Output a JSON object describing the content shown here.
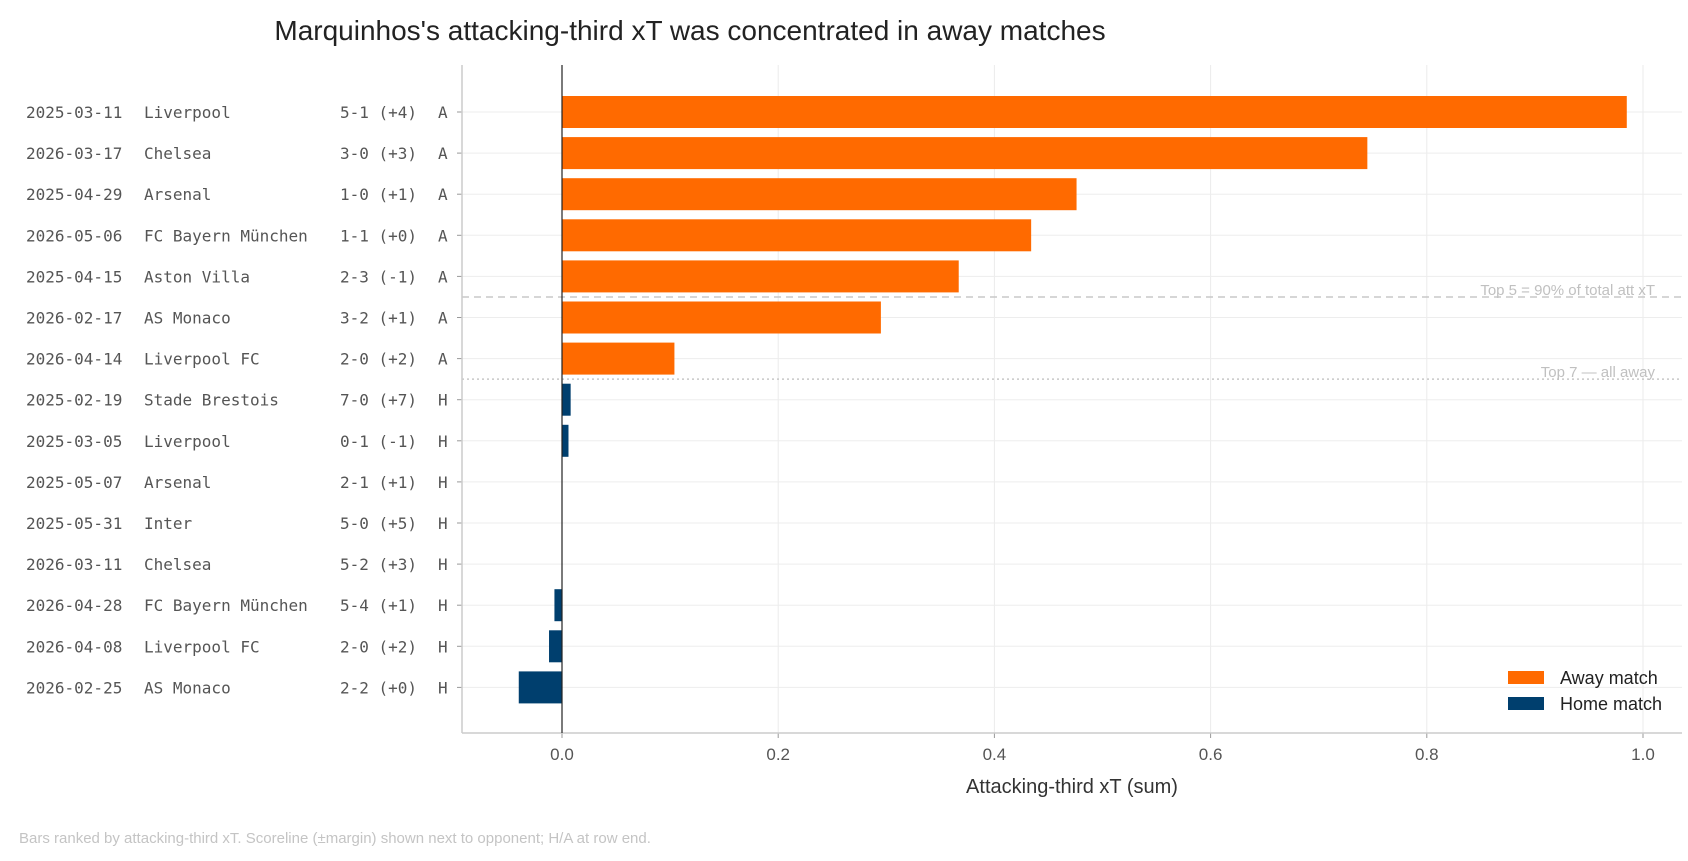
{
  "chart_data": {
    "type": "bar",
    "orientation": "horizontal",
    "title": "Marquinhos's attacking-third xT was concentrated in away matches",
    "xlabel": "Attacking-third xT (sum)",
    "ylabel": "",
    "xlim": [
      -0.09,
      1.035
    ],
    "xticks": [
      0.0,
      0.2,
      0.4,
      0.6,
      0.8,
      1.0
    ],
    "xtick_labels": [
      "0.0",
      "0.2",
      "0.4",
      "0.6",
      "0.8",
      "1.0"
    ],
    "grid": true,
    "legend_position": "bottom-right",
    "rows": [
      {
        "date": "2025-03-11",
        "opponent": "Liverpool",
        "score": "5-1 (+4)",
        "venue": "A",
        "value": 0.985
      },
      {
        "date": "2026-03-17",
        "opponent": "Chelsea",
        "score": "3-0 (+3)",
        "venue": "A",
        "value": 0.745
      },
      {
        "date": "2025-04-29",
        "opponent": "Arsenal",
        "score": "1-0 (+1)",
        "venue": "A",
        "value": 0.476
      },
      {
        "date": "2026-05-06",
        "opponent": "FC Bayern München",
        "score": "1-1 (+0)",
        "venue": "A",
        "value": 0.434
      },
      {
        "date": "2025-04-15",
        "opponent": "Aston Villa",
        "score": "2-3 (-1)",
        "venue": "A",
        "value": 0.367
      },
      {
        "date": "2026-02-17",
        "opponent": "AS Monaco",
        "score": "3-2 (+1)",
        "venue": "A",
        "value": 0.295
      },
      {
        "date": "2026-04-14",
        "opponent": "Liverpool FC",
        "score": "2-0 (+2)",
        "venue": "A",
        "value": 0.104
      },
      {
        "date": "2025-02-19",
        "opponent": "Stade Brestois",
        "score": "7-0 (+7)",
        "venue": "H",
        "value": 0.008
      },
      {
        "date": "2025-03-05",
        "opponent": "Liverpool",
        "score": "0-1 (-1)",
        "venue": "H",
        "value": 0.006
      },
      {
        "date": "2025-05-07",
        "opponent": "Arsenal",
        "score": "2-1 (+1)",
        "venue": "H",
        "value": 0.0
      },
      {
        "date": "2025-05-31",
        "opponent": "Inter",
        "score": "5-0 (+5)",
        "venue": "H",
        "value": 0.0
      },
      {
        "date": "2026-03-11",
        "opponent": "Chelsea",
        "score": "5-2 (+3)",
        "venue": "H",
        "value": 0.0
      },
      {
        "date": "2026-04-28",
        "opponent": "FC Bayern München",
        "score": "5-4 (+1)",
        "venue": "H",
        "value": -0.007
      },
      {
        "date": "2026-04-08",
        "opponent": "Liverpool FC",
        "score": "2-0 (+2)",
        "venue": "H",
        "value": -0.012
      },
      {
        "date": "2026-02-25",
        "opponent": "AS Monaco",
        "score": "2-2 (+0)",
        "venue": "H",
        "value": -0.04
      }
    ],
    "series": [
      {
        "name": "Away match",
        "venue": "A",
        "color": "#ff6a00"
      },
      {
        "name": "Home match",
        "venue": "H",
        "color": "#003f6e"
      }
    ],
    "annotations": [
      {
        "text": "Top 5 = 90% of total att xT",
        "after_rank": 5,
        "line_style": "dashed"
      },
      {
        "text": "Top 7 — all away",
        "after_rank": 7,
        "line_style": "dotted"
      }
    ],
    "footnote": "Bars ranked by attacking-third xT. Scoreline (±margin) shown next to opponent; H/A at row end."
  }
}
